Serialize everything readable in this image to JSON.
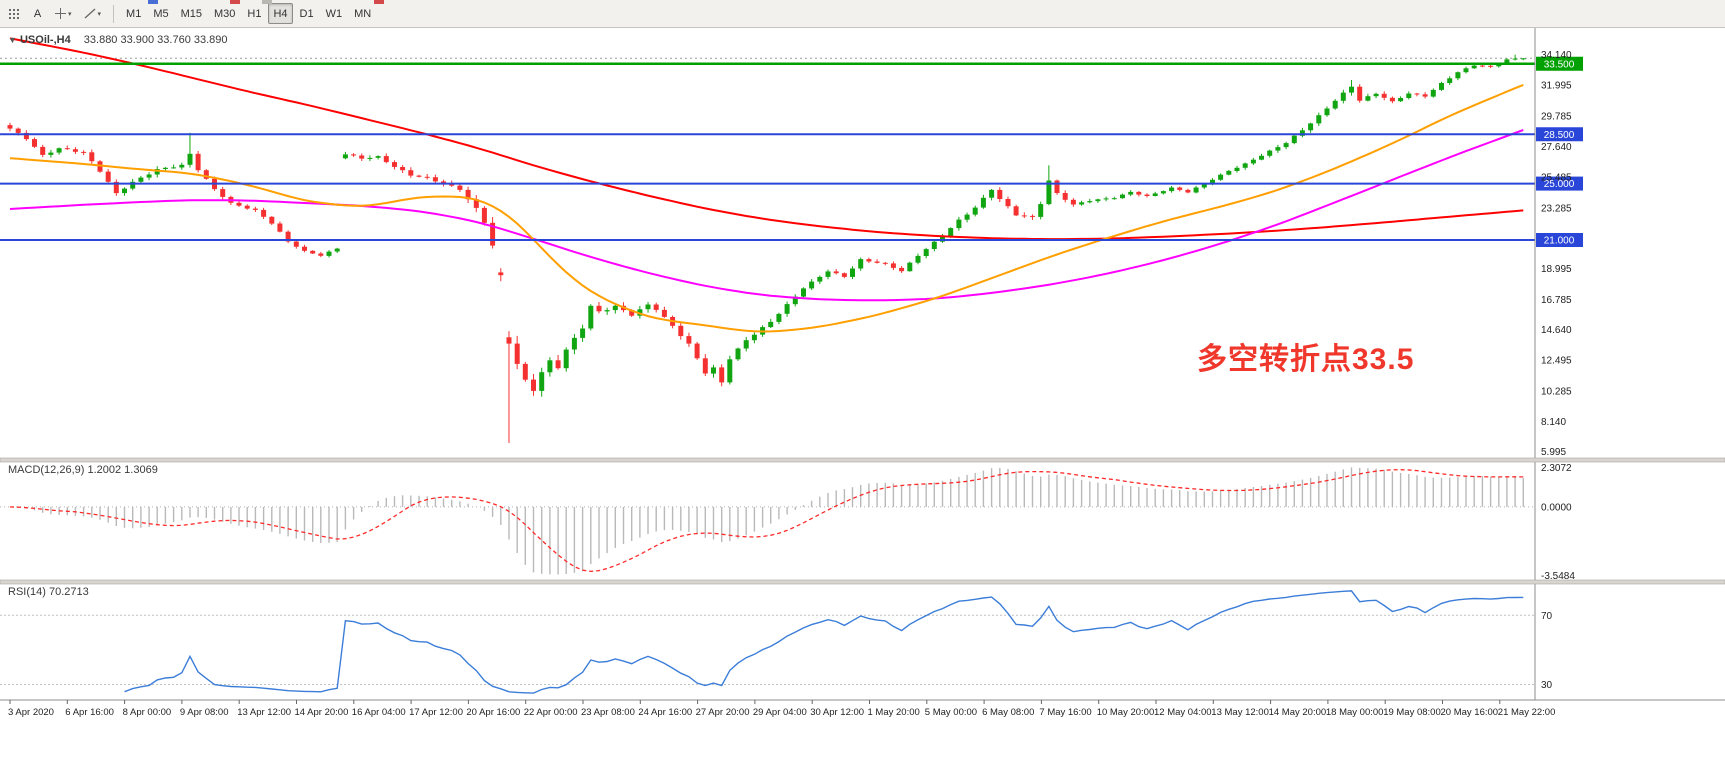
{
  "toolbar": {
    "text_tool_label": "A",
    "dropdown_glyph": "▾",
    "timeframes": [
      {
        "label": "M1",
        "active": false
      },
      {
        "label": "M5",
        "active": false
      },
      {
        "label": "M15",
        "active": false
      },
      {
        "label": "M30",
        "active": false
      },
      {
        "label": "H1",
        "active": false
      },
      {
        "label": "H4",
        "active": true
      },
      {
        "label": "D1",
        "active": false
      },
      {
        "label": "W1",
        "active": false
      },
      {
        "label": "MN",
        "active": false
      }
    ]
  },
  "chart": {
    "symbol_header": {
      "marker": "▼",
      "title": "USOil-,H4",
      "ohlc": "33.880 33.900 33.760 33.890"
    },
    "annotation": {
      "text": "多空转折点33.5",
      "color": "#f0372b"
    },
    "current_price": 33.89,
    "colors": {
      "bull": "#11a611",
      "bear": "#f53030",
      "axis_text": "#222222",
      "macd_hist": "#b9b9b9",
      "macd_signal": "#ff2a2a",
      "border": "#8c8c8c",
      "splitter": "#d8d5d0",
      "splitter_edge": "#a8a5a0"
    },
    "price_axis_labels": [
      "34.140",
      "31.995",
      "29.785",
      "27.640",
      "25.485",
      "23.285",
      "18.995",
      "16.785",
      "14.640",
      "12.495",
      "10.285",
      "8.140",
      "5.995"
    ],
    "levels": [
      {
        "price": 33.5,
        "label": "33.500",
        "color": "#00a000",
        "width": 2.5
      },
      {
        "price": 28.5,
        "label": "28.500",
        "color": "#2a46d8",
        "width": 2
      },
      {
        "price": 25.0,
        "label": "25.000",
        "color": "#2a46d8",
        "width": 2
      },
      {
        "price": 21.0,
        "label": "21.000",
        "color": "#2a46d8",
        "width": 2
      }
    ],
    "price_path": [
      [
        0,
        28.9
      ],
      [
        2,
        28.2
      ],
      [
        4,
        27.0
      ],
      [
        6,
        27.5
      ],
      [
        9,
        27.2
      ],
      [
        11,
        25.9
      ],
      [
        13,
        24.3
      ],
      [
        15,
        25.1
      ],
      [
        18,
        26.0
      ],
      [
        21,
        26.3
      ],
      [
        22,
        27.1
      ],
      [
        23,
        26.0
      ],
      [
        25,
        24.6
      ],
      [
        27,
        23.6
      ],
      [
        30,
        23.1
      ],
      [
        32,
        22.2
      ],
      [
        34,
        20.9
      ],
      [
        36,
        20.2
      ],
      [
        38,
        19.9
      ],
      [
        40,
        20.4
      ],
      [
        41,
        27.1
      ],
      [
        43,
        26.8
      ],
      [
        45,
        26.9
      ],
      [
        47,
        26.2
      ],
      [
        49,
        25.6
      ],
      [
        51,
        25.4
      ],
      [
        53,
        25.0
      ],
      [
        55,
        24.6
      ],
      [
        57,
        23.2
      ],
      [
        58,
        22.3
      ],
      [
        59,
        20.6
      ],
      [
        60,
        18.4
      ],
      [
        61,
        13.8
      ],
      [
        62,
        12.2
      ],
      [
        63,
        11.0
      ],
      [
        64,
        10.4
      ],
      [
        65,
        11.6
      ],
      [
        66,
        12.4
      ],
      [
        67,
        12.0
      ],
      [
        68,
        13.2
      ],
      [
        70,
        14.8
      ],
      [
        71,
        16.3
      ],
      [
        72,
        15.9
      ],
      [
        74,
        16.3
      ],
      [
        76,
        15.7
      ],
      [
        78,
        16.4
      ],
      [
        79,
        16.1
      ],
      [
        81,
        14.9
      ],
      [
        83,
        13.6
      ],
      [
        85,
        11.6
      ],
      [
        86,
        11.9
      ],
      [
        87,
        10.9
      ],
      [
        88,
        12.6
      ],
      [
        90,
        13.9
      ],
      [
        93,
        15.2
      ],
      [
        95,
        16.4
      ],
      [
        97,
        17.6
      ],
      [
        100,
        18.8
      ],
      [
        102,
        18.4
      ],
      [
        104,
        19.6
      ],
      [
        107,
        19.3
      ],
      [
        109,
        18.8
      ],
      [
        111,
        19.9
      ],
      [
        114,
        21.3
      ],
      [
        116,
        22.4
      ],
      [
        118,
        23.3
      ],
      [
        120,
        24.6
      ],
      [
        121,
        23.9
      ],
      [
        123,
        22.8
      ],
      [
        125,
        22.6
      ],
      [
        126,
        23.6
      ],
      [
        127,
        25.2
      ],
      [
        128,
        24.3
      ],
      [
        130,
        23.5
      ],
      [
        132,
        23.8
      ],
      [
        135,
        24.0
      ],
      [
        137,
        24.4
      ],
      [
        139,
        24.1
      ],
      [
        142,
        24.7
      ],
      [
        144,
        24.4
      ],
      [
        146,
        25.0
      ],
      [
        149,
        25.9
      ],
      [
        151,
        26.4
      ],
      [
        153,
        27.0
      ],
      [
        156,
        27.9
      ],
      [
        158,
        28.8
      ],
      [
        160,
        29.8
      ],
      [
        162,
        30.9
      ],
      [
        164,
        31.9
      ],
      [
        165,
        30.9
      ],
      [
        167,
        31.4
      ],
      [
        169,
        30.8
      ],
      [
        171,
        31.4
      ],
      [
        173,
        31.2
      ],
      [
        175,
        32.1
      ],
      [
        177,
        32.9
      ],
      [
        179,
        33.4
      ],
      [
        181,
        33.3
      ],
      [
        183,
        33.8
      ],
      [
        185,
        33.89
      ]
    ],
    "volatility": [
      [
        0,
        0.5
      ],
      [
        20,
        0.55
      ],
      [
        36,
        0.35
      ],
      [
        40,
        0.3
      ],
      [
        41,
        0.45
      ],
      [
        55,
        0.6
      ],
      [
        60,
        1.2
      ],
      [
        61,
        1.6
      ],
      [
        64,
        1.1
      ],
      [
        68,
        0.9
      ],
      [
        72,
        0.7
      ],
      [
        80,
        0.6
      ],
      [
        86,
        0.8
      ],
      [
        90,
        0.6
      ],
      [
        100,
        0.45
      ],
      [
        110,
        0.4
      ],
      [
        118,
        0.55
      ],
      [
        127,
        0.55
      ],
      [
        134,
        0.35
      ],
      [
        142,
        0.3
      ],
      [
        150,
        0.35
      ],
      [
        160,
        0.5
      ],
      [
        164,
        0.55
      ],
      [
        170,
        0.4
      ],
      [
        178,
        0.35
      ],
      [
        185,
        0.28
      ]
    ],
    "spikes": [
      {
        "i": 22,
        "high": 28.6
      },
      {
        "i": 61,
        "low": 6.6
      },
      {
        "i": 127,
        "high": 26.3
      },
      {
        "i": 164,
        "high": 32.35
      },
      {
        "i": 184,
        "high": 34.14
      }
    ],
    "ma_lines": [
      {
        "name": "ma-slow-red",
        "color": "#ff0000",
        "anchors": [
          [
            0,
            35.3
          ],
          [
            9,
            34.3
          ],
          [
            16,
            33.4
          ],
          [
            23,
            32.4
          ],
          [
            30,
            31.4
          ],
          [
            37,
            30.5
          ],
          [
            44,
            29.5
          ],
          [
            51,
            28.5
          ],
          [
            58,
            27.4
          ],
          [
            65,
            26.1
          ],
          [
            72,
            25.0
          ],
          [
            79,
            24.0
          ],
          [
            86,
            23.1
          ],
          [
            93,
            22.4
          ],
          [
            100,
            21.9
          ],
          [
            107,
            21.5
          ],
          [
            114,
            21.25
          ],
          [
            121,
            21.1
          ],
          [
            128,
            21.05
          ],
          [
            135,
            21.1
          ],
          [
            142,
            21.25
          ],
          [
            149,
            21.45
          ],
          [
            156,
            21.7
          ],
          [
            163,
            22.0
          ],
          [
            170,
            22.35
          ],
          [
            177,
            22.7
          ],
          [
            185,
            23.1
          ]
        ]
      },
      {
        "name": "ma-mid-magenta",
        "color": "#ff00ff",
        "anchors": [
          [
            0,
            23.2
          ],
          [
            9,
            23.5
          ],
          [
            16,
            23.7
          ],
          [
            23,
            23.85
          ],
          [
            30,
            23.8
          ],
          [
            37,
            23.6
          ],
          [
            44,
            23.4
          ],
          [
            51,
            23.0
          ],
          [
            58,
            22.2
          ],
          [
            65,
            20.9
          ],
          [
            72,
            19.6
          ],
          [
            79,
            18.5
          ],
          [
            86,
            17.6
          ],
          [
            93,
            17.0
          ],
          [
            100,
            16.75
          ],
          [
            107,
            16.7
          ],
          [
            114,
            16.85
          ],
          [
            121,
            17.3
          ],
          [
            128,
            17.9
          ],
          [
            135,
            18.7
          ],
          [
            142,
            19.7
          ],
          [
            149,
            20.9
          ],
          [
            156,
            22.3
          ],
          [
            163,
            23.9
          ],
          [
            170,
            25.5
          ],
          [
            177,
            27.1
          ],
          [
            185,
            28.8
          ]
        ]
      },
      {
        "name": "ma-fast-orange",
        "color": "#ff9f00",
        "anchors": [
          [
            0,
            26.8
          ],
          [
            9,
            26.4
          ],
          [
            16,
            26.0
          ],
          [
            23,
            25.7
          ],
          [
            30,
            24.8
          ],
          [
            37,
            23.6
          ],
          [
            44,
            23.3
          ],
          [
            51,
            24.2
          ],
          [
            58,
            24.0
          ],
          [
            62,
            22.5
          ],
          [
            65,
            20.5
          ],
          [
            68,
            18.5
          ],
          [
            72,
            16.8
          ],
          [
            79,
            15.3
          ],
          [
            86,
            14.9
          ],
          [
            90,
            14.5
          ],
          [
            93,
            14.4
          ],
          [
            100,
            14.9
          ],
          [
            107,
            15.8
          ],
          [
            114,
            17.0
          ],
          [
            121,
            18.5
          ],
          [
            128,
            20.0
          ],
          [
            135,
            21.3
          ],
          [
            142,
            22.5
          ],
          [
            149,
            23.5
          ],
          [
            156,
            24.7
          ],
          [
            163,
            26.3
          ],
          [
            170,
            28.1
          ],
          [
            177,
            30.1
          ],
          [
            185,
            32.0
          ]
        ]
      }
    ],
    "macd": {
      "header": "MACD(12,26,9) 1.2002 1.3069",
      "axis_labels": [
        "2.3072",
        "0.0000",
        "-3.5484"
      ]
    },
    "rsi": {
      "header": "RSI(14) 70.2713",
      "levels": [
        70,
        30
      ],
      "color": "#3b7dd8"
    },
    "date_labels": [
      "3 Apr 2020",
      "6 Apr 16:00",
      "8 Apr 00:00",
      "9 Apr 08:00",
      "13 Apr 12:00",
      "14 Apr 20:00",
      "16 Apr 04:00",
      "17 Apr 12:00",
      "20 Apr 16:00",
      "22 Apr 00:00",
      "23 Apr 08:00",
      "24 Apr 16:00",
      "27 Apr 20:00",
      "29 Apr 04:00",
      "30 Apr 12:00",
      "1 May 20:00",
      "5 May 00:00",
      "6 May 08:00",
      "7 May 16:00",
      "10 May 20:00",
      "12 May 04:00",
      "13 May 12:00",
      "14 May 20:00",
      "18 May 00:00",
      "19 May 08:00",
      "20 May 16:00",
      "21 May 22:00"
    ]
  }
}
